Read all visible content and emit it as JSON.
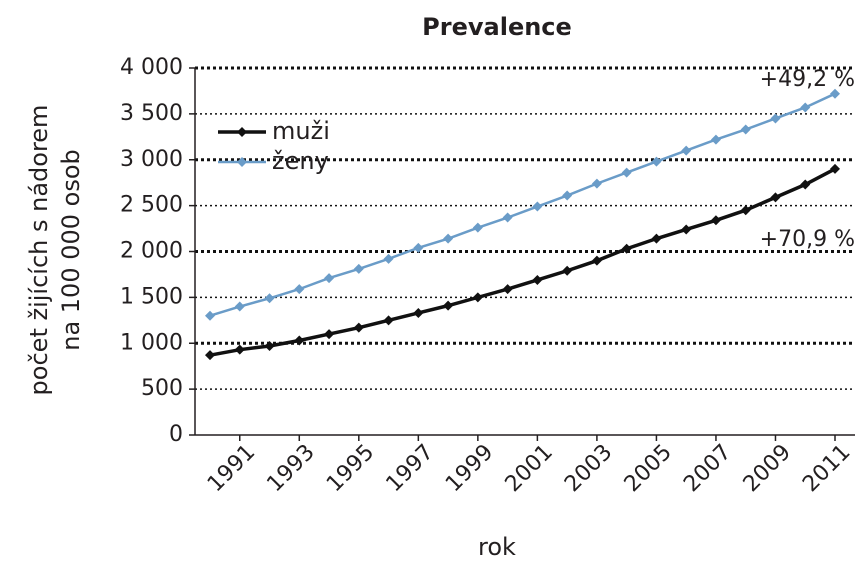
{
  "chart_data": {
    "type": "line",
    "title": "Prevalence",
    "x_label": "rok",
    "y_label": [
      "počet žijících s nádorem",
      "na 100 000 osob"
    ],
    "x": [
      1990,
      1991,
      1992,
      1993,
      1994,
      1995,
      1996,
      1997,
      1998,
      1999,
      2000,
      2001,
      2002,
      2003,
      2004,
      2005,
      2006,
      2007,
      2008,
      2009,
      2010,
      2011
    ],
    "xlim": [
      1990,
      2011
    ],
    "xticks": [
      1991,
      1993,
      1995,
      1997,
      1999,
      2001,
      2003,
      2005,
      2007,
      2009,
      2011
    ],
    "ylim": [
      0,
      4000
    ],
    "yticks": [
      0,
      500,
      {
        "value": 1000,
        "label": "1 000"
      },
      {
        "value": 1500,
        "label": "1 500"
      },
      {
        "value": 2000,
        "label": "2 000"
      },
      {
        "value": 2500,
        "label": "2 500"
      },
      {
        "value": 3000,
        "label": "3 000"
      },
      {
        "value": 3500,
        "label": "3 500"
      },
      {
        "value": 4000,
        "label": "4 000"
      }
    ],
    "grid": true,
    "legend": "upper left",
    "series": [
      {
        "name": "muži",
        "color": "#111111",
        "values": [
          870,
          930,
          970,
          1030,
          1100,
          1170,
          1250,
          1330,
          1410,
          1500,
          1590,
          1690,
          1790,
          1900,
          2030,
          2140,
          2240,
          2340,
          2450,
          2590,
          2730,
          2900
        ]
      },
      {
        "name": "ženy",
        "color": "#6a9cc8",
        "values": [
          1300,
          1400,
          1490,
          1590,
          1710,
          1810,
          1920,
          2040,
          2140,
          2260,
          2370,
          2490,
          2610,
          2740,
          2860,
          2980,
          3100,
          3220,
          3330,
          3450,
          3570,
          3720
        ]
      }
    ],
    "annotations": [
      "+49,2 %",
      "+70,9 %"
    ]
  }
}
